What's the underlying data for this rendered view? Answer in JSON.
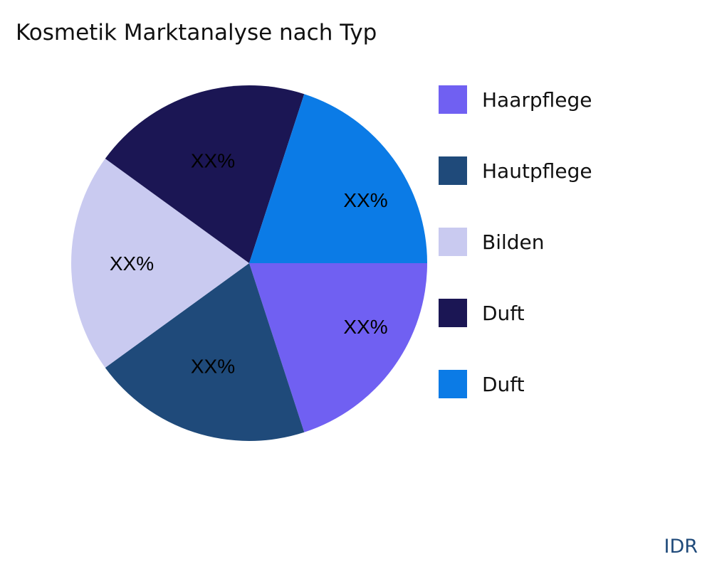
{
  "chart_data": {
    "type": "pie",
    "title": "Kosmetik Marktanalyse nach Typ",
    "legend_position": "right",
    "slices": [
      {
        "name": "Haarpflege",
        "value": 20,
        "label": "XX%",
        "color": "#7060f2"
      },
      {
        "name": "Hautpflege",
        "value": 20,
        "label": "XX%",
        "color": "#1f4a7a"
      },
      {
        "name": "Bilden",
        "value": 20,
        "label": "XX%",
        "color": "#c9caf0"
      },
      {
        "name": "Duft",
        "value": 20,
        "label": "XX%",
        "color": "#1b1654"
      },
      {
        "name": "Duft",
        "value": 20,
        "label": "XX%",
        "color": "#0b7be6"
      }
    ]
  },
  "brand": "IDR"
}
